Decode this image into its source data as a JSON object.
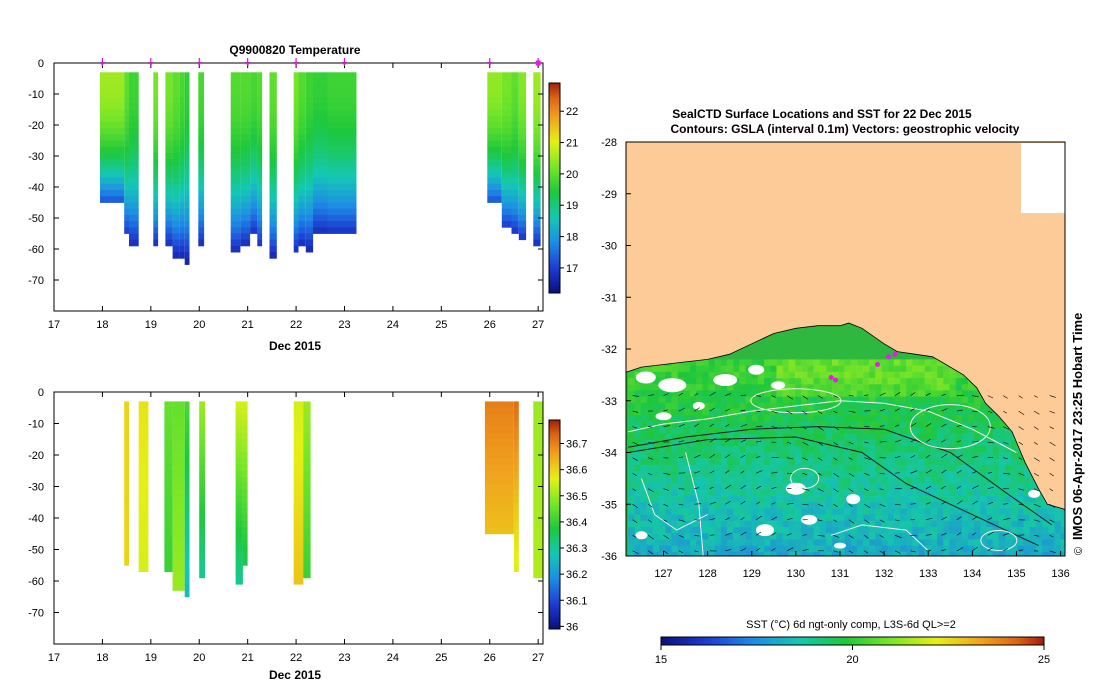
{
  "chart_data": [
    {
      "type": "heatmap",
      "title": "Q9900820  Temperature",
      "xlabel": "Dec 2015",
      "ylabel": "",
      "xlim": [
        17,
        27.1
      ],
      "ylim": [
        -80,
        0
      ],
      "xticks": [
        "17",
        "18",
        "19",
        "20",
        "21",
        "22",
        "23",
        "24",
        "25",
        "26",
        "27"
      ],
      "yticks": [
        "0",
        "-10",
        "-20",
        "-30",
        "-40",
        "-50",
        "-60",
        "-70"
      ],
      "colorbar": {
        "min": 16.2,
        "max": 22.9,
        "ticks": [
          "17",
          "18",
          "19",
          "20",
          "21",
          "22"
        ]
      },
      "surfacing_days": [
        18.0,
        19.0,
        20.0,
        21.0,
        22.0,
        23.0,
        26.0,
        27.0
      ],
      "profiles": [
        {
          "x0": 17.95,
          "x1": 18.45,
          "top": -3,
          "bottom": -45,
          "surface": 20.5,
          "deep": 17.0
        },
        {
          "x0": 18.45,
          "x1": 18.55,
          "top": -3,
          "bottom": -55,
          "surface": 20.0,
          "deep": 16.8
        },
        {
          "x0": 18.55,
          "x1": 18.75,
          "top": -3,
          "bottom": -59,
          "surface": 19.7,
          "deep": 16.6
        },
        {
          "x0": 19.05,
          "x1": 19.15,
          "top": -3,
          "bottom": -59,
          "surface": 20.2,
          "deep": 16.6
        },
        {
          "x0": 19.3,
          "x1": 19.45,
          "top": -3,
          "bottom": -59,
          "surface": 20.2,
          "deep": 16.6
        },
        {
          "x0": 19.45,
          "x1": 19.6,
          "top": -3,
          "bottom": -63,
          "surface": 20.0,
          "deep": 16.5
        },
        {
          "x0": 19.6,
          "x1": 19.7,
          "top": -3,
          "bottom": -63,
          "surface": 19.8,
          "deep": 16.5
        },
        {
          "x0": 19.7,
          "x1": 19.8,
          "top": -3,
          "bottom": -65,
          "surface": 19.6,
          "deep": 16.4
        },
        {
          "x0": 19.98,
          "x1": 20.1,
          "top": -3,
          "bottom": -59,
          "surface": 19.8,
          "deep": 16.6
        },
        {
          "x0": 20.65,
          "x1": 20.85,
          "top": -3,
          "bottom": -61,
          "surface": 19.9,
          "deep": 16.6
        },
        {
          "x0": 20.85,
          "x1": 21.05,
          "top": -3,
          "bottom": -59,
          "surface": 19.9,
          "deep": 16.6
        },
        {
          "x0": 21.05,
          "x1": 21.2,
          "top": -3,
          "bottom": -55,
          "surface": 19.8,
          "deep": 16.7
        },
        {
          "x0": 21.2,
          "x1": 21.3,
          "top": -3,
          "bottom": -59,
          "surface": 19.9,
          "deep": 16.7
        },
        {
          "x0": 21.45,
          "x1": 21.6,
          "top": -3,
          "bottom": -63,
          "surface": 20.0,
          "deep": 16.5
        },
        {
          "x0": 21.95,
          "x1": 22.05,
          "top": -3,
          "bottom": -61,
          "surface": 20.2,
          "deep": 16.6
        },
        {
          "x0": 22.05,
          "x1": 22.2,
          "top": -3,
          "bottom": -59,
          "surface": 19.9,
          "deep": 16.6
        },
        {
          "x0": 22.2,
          "x1": 22.35,
          "top": -3,
          "bottom": -61,
          "surface": 19.7,
          "deep": 16.5
        },
        {
          "x0": 22.35,
          "x1": 22.65,
          "top": -3,
          "bottom": -55,
          "surface": 19.6,
          "deep": 16.6
        },
        {
          "x0": 22.65,
          "x1": 23.25,
          "top": -3,
          "bottom": -55,
          "surface": 19.7,
          "deep": 16.7
        },
        {
          "x0": 25.95,
          "x1": 26.25,
          "top": -3,
          "bottom": -45,
          "surface": 20.4,
          "deep": 17.0
        },
        {
          "x0": 26.25,
          "x1": 26.45,
          "top": -3,
          "bottom": -53,
          "surface": 20.2,
          "deep": 16.8
        },
        {
          "x0": 26.45,
          "x1": 26.6,
          "top": -3,
          "bottom": -55,
          "surface": 20.0,
          "deep": 16.7
        },
        {
          "x0": 26.6,
          "x1": 26.75,
          "top": -3,
          "bottom": -57,
          "surface": 20.3,
          "deep": 16.7
        },
        {
          "x0": 26.9,
          "x1": 27.05,
          "top": -3,
          "bottom": -59,
          "surface": 20.5,
          "deep": 16.6
        }
      ]
    },
    {
      "type": "heatmap",
      "title": "",
      "xlabel": "Dec 2015",
      "ylabel": "",
      "xlim": [
        17,
        27.1
      ],
      "ylim": [
        -80,
        0
      ],
      "xticks": [
        "17",
        "18",
        "19",
        "20",
        "21",
        "22",
        "23",
        "24",
        "25",
        "26",
        "27"
      ],
      "yticks": [
        "0",
        "-10",
        "-20",
        "-30",
        "-40",
        "-50",
        "-60",
        "-70"
      ],
      "colorbar": {
        "min": 35.99,
        "max": 36.79,
        "ticks": [
          "36",
          "36.1",
          "36.2",
          "36.3",
          "36.4",
          "36.5",
          "36.6",
          "36.7"
        ]
      },
      "profiles": [
        {
          "x0": 18.45,
          "x1": 18.55,
          "top": -3,
          "bottom": -55,
          "surface": 36.6,
          "deep": 36.6
        },
        {
          "x0": 18.75,
          "x1": 18.95,
          "top": -3,
          "bottom": -57,
          "surface": 36.58,
          "deep": 36.55
        },
        {
          "x0": 19.28,
          "x1": 19.45,
          "top": -3,
          "bottom": -57,
          "surface": 36.45,
          "deep": 36.4
        },
        {
          "x0": 19.45,
          "x1": 19.7,
          "top": -3,
          "bottom": -63,
          "surface": 36.45,
          "deep": 36.5
        },
        {
          "x0": 19.7,
          "x1": 19.8,
          "top": -3,
          "bottom": -65,
          "surface": 36.42,
          "deep": 36.25
        },
        {
          "x0": 20.0,
          "x1": 20.12,
          "top": -3,
          "bottom": -59,
          "surface": 36.5,
          "deep": 36.3
        },
        {
          "x0": 20.75,
          "x1": 20.9,
          "top": -3,
          "bottom": -61,
          "surface": 36.55,
          "deep": 36.3
        },
        {
          "x0": 20.9,
          "x1": 21.0,
          "top": -3,
          "bottom": -55,
          "surface": 36.55,
          "deep": 36.35
        },
        {
          "x0": 21.95,
          "x1": 22.15,
          "top": -3,
          "bottom": -61,
          "surface": 36.55,
          "deep": 36.62
        },
        {
          "x0": 22.15,
          "x1": 22.3,
          "top": -3,
          "bottom": -59,
          "surface": 36.5,
          "deep": 36.4
        },
        {
          "x0": 25.9,
          "x1": 26.5,
          "top": -3,
          "bottom": -45,
          "surface": 36.7,
          "deep": 36.62
        },
        {
          "x0": 26.5,
          "x1": 26.6,
          "top": -3,
          "bottom": -57,
          "surface": 36.72,
          "deep": 36.55
        },
        {
          "x0": 26.9,
          "x1": 27.1,
          "top": -3,
          "bottom": -59,
          "surface": 36.5,
          "deep": 36.52
        }
      ]
    },
    {
      "type": "map",
      "title": "SealCTD Surface Locations and SST for 22 Dec 2015",
      "subtitle": "Contours: GSLA (interval 0.1m) Vectors: geostrophic velocity",
      "xlabel": "",
      "ylabel": "",
      "xlim": [
        126.15,
        136.1
      ],
      "ylim": [
        -36,
        -28
      ],
      "xticks": [
        "127",
        "128",
        "129",
        "130",
        "131",
        "132",
        "133",
        "134",
        "135",
        "136"
      ],
      "yticks": [
        "-28",
        "-29",
        "-30",
        "-31",
        "-32",
        "-33",
        "-34",
        "-35",
        "-36"
      ],
      "side_label": "IMOS 06-Apr-2017 23:25 Hobart Time",
      "copyright": "©",
      "colorbar": {
        "label": "SST (°C) 6d ngt-only comp, L3S-6d QL>=2",
        "min": 15,
        "max": 25,
        "ticks": [
          "15",
          "20",
          "25"
        ]
      },
      "seal_locations": [
        {
          "lon": 130.8,
          "lat": -32.55
        },
        {
          "lon": 130.9,
          "lat": -32.6
        },
        {
          "lon": 131.85,
          "lat": -32.3
        },
        {
          "lon": 132.25,
          "lat": -32.1
        },
        {
          "lon": 132.1,
          "lat": -32.15
        }
      ],
      "coastline": [
        [
          126.15,
          -32.45
        ],
        [
          126.5,
          -32.35
        ],
        [
          127.0,
          -32.3
        ],
        [
          127.5,
          -32.25
        ],
        [
          128.0,
          -32.2
        ],
        [
          128.5,
          -32.1
        ],
        [
          129.0,
          -31.9
        ],
        [
          129.5,
          -31.7
        ],
        [
          130.0,
          -31.6
        ],
        [
          130.5,
          -31.55
        ],
        [
          131.0,
          -31.55
        ],
        [
          131.2,
          -31.5
        ],
        [
          131.5,
          -31.6
        ],
        [
          132.0,
          -31.9
        ],
        [
          132.3,
          -32.05
        ],
        [
          132.7,
          -32.1
        ],
        [
          133.1,
          -32.15
        ],
        [
          133.4,
          -32.3
        ],
        [
          133.8,
          -32.5
        ],
        [
          134.1,
          -32.75
        ],
        [
          134.3,
          -33.05
        ],
        [
          134.6,
          -33.3
        ],
        [
          134.9,
          -33.6
        ],
        [
          135.2,
          -34.2
        ],
        [
          135.5,
          -34.7
        ],
        [
          135.7,
          -35.0
        ],
        [
          136.1,
          -35.1
        ]
      ]
    }
  ]
}
